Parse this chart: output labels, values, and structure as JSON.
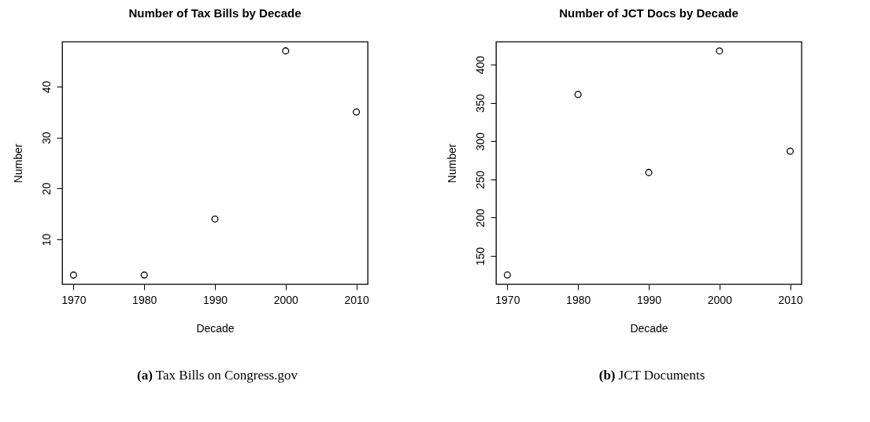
{
  "chart_data": [
    {
      "type": "scatter",
      "title": "Number of Tax Bills by Decade",
      "xlabel": "Decade",
      "ylabel": "Number",
      "x": [
        1970,
        1980,
        1990,
        2000,
        2010
      ],
      "values": [
        3,
        3,
        14,
        47,
        35
      ],
      "color": "#000000",
      "marker": "circle",
      "xlim": [
        1968.4,
        2011.6
      ],
      "xticks": [
        1970,
        1980,
        1990,
        2000,
        2010
      ],
      "ylim": [
        1.2,
        48.8
      ],
      "yticks": [
        10,
        20,
        30,
        40
      ],
      "grid": false,
      "annotations": [
        "(a) Tax Bills on Congress.gov"
      ]
    },
    {
      "type": "scatter",
      "title": "Number of JCT Docs by Decade",
      "xlabel": "Decade",
      "ylabel": "Number",
      "x": [
        1970,
        1980,
        1990,
        2000,
        2010
      ],
      "values": [
        125,
        361,
        259,
        418,
        287
      ],
      "color": "#000000",
      "marker": "circle",
      "xlim": [
        1968.4,
        2011.6
      ],
      "xticks": [
        1970,
        1980,
        1990,
        2000,
        2010
      ],
      "ylim": [
        113,
        430
      ],
      "yticks": [
        150,
        200,
        250,
        300,
        350,
        400
      ],
      "grid": false,
      "annotations": [
        "(b) JCT Documents"
      ]
    }
  ]
}
